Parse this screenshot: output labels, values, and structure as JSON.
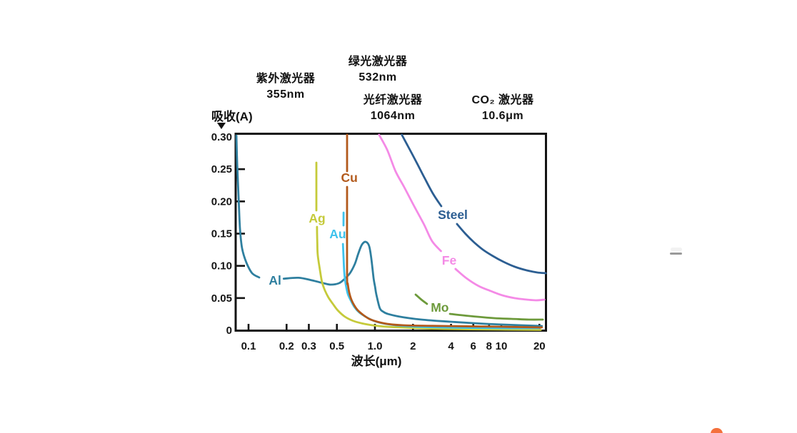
{
  "figure": {
    "background": "#ffffff",
    "annotations": [
      {
        "id": "uv",
        "line1": "紫外激光器",
        "line2": "355nm"
      },
      {
        "id": "green",
        "line1": "绿光激光器",
        "line2": "532nm"
      },
      {
        "id": "fiber",
        "line1": "光纤激光器",
        "line2": "1064nm"
      },
      {
        "id": "co2",
        "line1": "CO₂ 激光器",
        "line2": "10.6μm"
      }
    ],
    "icons": {
      "y_axis_pointer": "down-triangle"
    },
    "artifacts": {
      "watermark_dash_color": "#9a9a9a",
      "corner_fragment_color": "#f4703c"
    }
  },
  "chart_data": {
    "type": "line",
    "x_scale": "log",
    "grid": false,
    "xlabel": "波长(μm)",
    "ylabel": "吸收(A)",
    "xlim": [
      0.079,
      22.7
    ],
    "ylim": [
      0,
      0.3
    ],
    "x_ticks": [
      {
        "v": 0.1,
        "label": "0.1"
      },
      {
        "v": 0.2,
        "label": "0.2"
      },
      {
        "v": 0.3,
        "label": "0.3"
      },
      {
        "v": 0.5,
        "label": "0.5"
      },
      {
        "v": 1.0,
        "label": "1.0"
      },
      {
        "v": 2,
        "label": "2"
      },
      {
        "v": 4,
        "label": "4"
      },
      {
        "v": 6,
        "label": "6"
      },
      {
        "v": 8,
        "label": "8"
      },
      {
        "v": 10,
        "label": "10"
      },
      {
        "v": 20,
        "label": "20"
      }
    ],
    "y_ticks": [
      {
        "v": 0,
        "label": "0",
        "tick": false
      },
      {
        "v": 0.05,
        "label": "0.05",
        "tick": true
      },
      {
        "v": 0.1,
        "label": "0.10",
        "tick": true
      },
      {
        "v": 0.15,
        "label": "0.15",
        "tick": true
      },
      {
        "v": 0.2,
        "label": "0.20",
        "tick": true
      },
      {
        "v": 0.25,
        "label": "0.25",
        "tick": true
      },
      {
        "v": 0.3,
        "label": "0.30",
        "tick": false
      }
    ],
    "series": [
      {
        "name": "Al",
        "color": "#2e7f9f",
        "label": {
          "text": "Al",
          "x": 0.162,
          "y": 0.0775
        },
        "segments": [
          [
            [
              0.0802,
              0.302
            ],
            [
              0.0813,
              0.258
            ],
            [
              0.0834,
              0.208
            ],
            [
              0.0856,
              0.158
            ],
            [
              0.0889,
              0.127
            ],
            [
              0.0962,
              0.105
            ],
            [
              0.1067,
              0.0886
            ],
            [
              0.1216,
              0.0819
            ]
          ],
          [
            [
              0.19,
              0.08
            ],
            [
              0.249,
              0.0815
            ],
            [
              0.318,
              0.0775
            ],
            [
              0.392,
              0.0731
            ],
            [
              0.447,
              0.0708
            ],
            [
              0.52,
              0.0731
            ],
            [
              0.575,
              0.0797
            ],
            [
              0.634,
              0.0886
            ],
            [
              0.694,
              0.103
            ],
            [
              0.74,
              0.1196
            ],
            [
              0.789,
              0.1329
            ],
            [
              0.844,
              0.1373
            ],
            [
              0.9,
              0.1306
            ],
            [
              0.937,
              0.1107
            ],
            [
              0.976,
              0.0808
            ],
            [
              1.002,
              0.0675
            ],
            [
              1.027,
              0.0554
            ],
            [
              1.093,
              0.0343
            ],
            [
              1.165,
              0.0288
            ],
            [
              1.26,
              0.0255
            ],
            [
              1.58,
              0.021
            ],
            [
              2.33,
              0.0166
            ],
            [
              3.93,
              0.0133
            ],
            [
              7.55,
              0.01
            ],
            [
              14.5,
              0.0078
            ],
            [
              20.9,
              0.0066
            ]
          ]
        ]
      },
      {
        "name": "Ag",
        "color": "#c5ca3a",
        "label": {
          "text": "Ag",
          "x": 0.349,
          "y": 0.1738
        },
        "segments": [
          [
            [
              0.344,
              0.2601
            ],
            [
              0.344,
              0.186
            ]
          ],
          [
            [
              0.348,
              0.1605
            ],
            [
              0.35,
              0.1362
            ],
            [
              0.353,
              0.1162
            ],
            [
              0.367,
              0.0941
            ],
            [
              0.381,
              0.0753
            ],
            [
              0.402,
              0.062
            ],
            [
              0.429,
              0.0509
            ],
            [
              0.465,
              0.041
            ],
            [
              0.508,
              0.031
            ],
            [
              0.579,
              0.021
            ],
            [
              0.677,
              0.0144
            ],
            [
              0.823,
              0.01
            ],
            [
              1.066,
              0.0066
            ],
            [
              1.578,
              0.0044
            ],
            [
              3.44,
              0.0022
            ],
            [
              9.74,
              0.0011
            ],
            [
              20.5,
              0.0005
            ]
          ]
        ]
      },
      {
        "name": "Au",
        "color": "#3dc2ec",
        "label": {
          "text": "Au",
          "x": 0.508,
          "y": 0.1494
        },
        "segments": [
          [
            [
              0.565,
              0.1827
            ],
            [
              0.564,
              0.1627
            ]
          ],
          [
            [
              0.558,
              0.1339
            ],
            [
              0.565,
              0.1118
            ],
            [
              0.572,
              0.0897
            ],
            [
              0.587,
              0.072
            ],
            [
              0.61,
              0.0565
            ],
            [
              0.643,
              0.0465
            ],
            [
              0.686,
              0.0365
            ],
            [
              0.751,
              0.0277
            ],
            [
              0.845,
              0.021
            ],
            [
              0.987,
              0.0144
            ],
            [
              1.215,
              0.01
            ],
            [
              1.686,
              0.0066
            ],
            [
              3.44,
              0.0044
            ],
            [
              9.74,
              0.0033
            ],
            [
              19.9,
              0.0033
            ]
          ]
        ]
      },
      {
        "name": "Cu",
        "color": "#b2591b",
        "label": {
          "text": "Cu",
          "x": 0.627,
          "y": 0.2369
        },
        "segments": [
          [
            [
              0.602,
              0.3033
            ],
            [
              0.602,
              0.2469
            ]
          ],
          [
            [
              0.602,
              0.2225
            ],
            [
              0.602,
              0.0863
            ],
            [
              0.61,
              0.072
            ],
            [
              0.626,
              0.0587
            ],
            [
              0.651,
              0.0476
            ],
            [
              0.686,
              0.0387
            ],
            [
              0.732,
              0.031
            ],
            [
              0.801,
              0.0244
            ],
            [
              0.9,
              0.0177
            ],
            [
              1.041,
              0.0133
            ],
            [
              1.249,
              0.01
            ],
            [
              1.686,
              0.0077
            ],
            [
              3.44,
              0.0066
            ],
            [
              9.74,
              0.0055
            ],
            [
              20.9,
              0.0044
            ]
          ]
        ]
      },
      {
        "name": "Steel",
        "color": "#2c5e92",
        "label": {
          "text": "Steel",
          "x": 4.13,
          "y": 0.1793
        },
        "segments": [
          [
            [
              1.634,
              0.3033
            ],
            [
              1.838,
              0.2845
            ],
            [
              2.125,
              0.2613
            ],
            [
              2.478,
              0.2358
            ],
            [
              2.89,
              0.2114
            ],
            [
              3.35,
              0.1926
            ]
          ],
          [
            [
              4.46,
              0.1649
            ],
            [
              5.22,
              0.1494
            ],
            [
              6.11,
              0.1362
            ],
            [
              7.15,
              0.1251
            ],
            [
              8.59,
              0.1151
            ],
            [
              10.4,
              0.1063
            ],
            [
              12.8,
              0.0985
            ],
            [
              15.9,
              0.093
            ],
            [
              19.3,
              0.0897
            ],
            [
              22.5,
              0.0886
            ]
          ]
        ]
      },
      {
        "name": "Fe",
        "color": "#f48ae6",
        "label": {
          "text": "Fe",
          "x": 3.87,
          "y": 0.1085
        },
        "segments": [
          [
            [
              1.079,
              0.3033
            ],
            [
              1.25,
              0.28
            ],
            [
              1.455,
              0.2469
            ],
            [
              1.7,
              0.2225
            ],
            [
              2.03,
              0.1937
            ],
            [
              2.45,
              0.1638
            ],
            [
              2.83,
              0.1384
            ],
            [
              3.33,
              0.1229
            ]
          ],
          [
            [
              4.34,
              0.0952
            ],
            [
              5.29,
              0.0808
            ],
            [
              6.62,
              0.0686
            ],
            [
              8.25,
              0.0609
            ],
            [
              10.2,
              0.0542
            ],
            [
              12.8,
              0.0498
            ],
            [
              15.9,
              0.0476
            ],
            [
              18.8,
              0.0465
            ],
            [
              21.9,
              0.0476
            ]
          ]
        ]
      },
      {
        "name": "Mo",
        "color": "#6d9a3b",
        "label": {
          "text": "Mo",
          "x": 3.26,
          "y": 0.0354
        },
        "segments": [
          [
            [
              2.1,
              0.0554
            ],
            [
              2.33,
              0.0476
            ],
            [
              2.58,
              0.041
            ]
          ],
          [
            [
              3.92,
              0.0255
            ],
            [
              4.94,
              0.0232
            ],
            [
              6.43,
              0.021
            ],
            [
              8.78,
              0.0188
            ],
            [
              12.0,
              0.0177
            ],
            [
              16.5,
              0.0166
            ],
            [
              21.3,
              0.0166
            ]
          ]
        ]
      }
    ]
  }
}
